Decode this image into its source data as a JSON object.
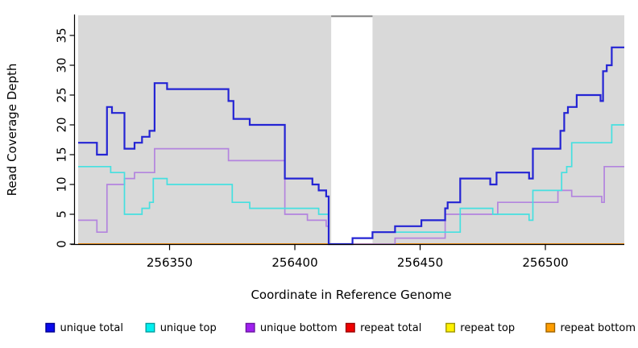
{
  "figure": {
    "x_axis_label": "Coordinate in Reference Genome",
    "y_axis_label": "Read Coverage Depth"
  },
  "chart_data": {
    "type": "line",
    "subtype": "step-coverage",
    "title": "",
    "xlabel": "Coordinate in Reference Genome",
    "ylabel": "Read Coverage Depth",
    "x_range": [
      256313.5,
      256531.5
    ],
    "y_range": [
      0,
      38.4
    ],
    "x_ticks": [
      256350,
      256400,
      256450,
      256500
    ],
    "y_ticks": [
      0,
      5,
      10,
      15,
      20,
      25,
      30,
      35
    ],
    "grid": false,
    "panel_color": "#d9d9d9",
    "axis_color": "#000000",
    "legend_position": "bottom",
    "mask_region": {
      "x_start": 256414.5,
      "x_end": 256431,
      "fill": "#ffffff",
      "top_border_color": "#8a8a8a"
    },
    "draw_order": [
      "repeat total",
      "repeat top",
      "repeat bottom",
      "unique bottom",
      "unique top",
      "unique total"
    ],
    "series": [
      {
        "name": "unique total",
        "color": "#2424d4",
        "width": 2.2,
        "steps": [
          [
            256313.5,
            17
          ],
          [
            256321,
            15
          ],
          [
            256325,
            23
          ],
          [
            256327,
            22
          ],
          [
            256332,
            16
          ],
          [
            256336,
            17
          ],
          [
            256339,
            18
          ],
          [
            256342,
            19
          ],
          [
            256344,
            27
          ],
          [
            256349,
            26
          ],
          [
            256373.5,
            24
          ],
          [
            256375.5,
            21
          ],
          [
            256382,
            20
          ],
          [
            256396,
            11
          ],
          [
            256407,
            10
          ],
          [
            256409.5,
            9
          ],
          [
            256412.5,
            8
          ],
          [
            256413.5,
            0
          ],
          [
            256423,
            1
          ],
          [
            256431,
            2
          ],
          [
            256440,
            3
          ],
          [
            256450.5,
            4
          ],
          [
            256460,
            6
          ],
          [
            256461,
            7
          ],
          [
            256466,
            11
          ],
          [
            256478,
            10
          ],
          [
            256480.5,
            12
          ],
          [
            256493.5,
            11
          ],
          [
            256495,
            16
          ],
          [
            256506,
            19
          ],
          [
            256507.5,
            22
          ],
          [
            256509,
            23
          ],
          [
            256512.5,
            25
          ],
          [
            256522,
            24
          ],
          [
            256523,
            29
          ],
          [
            256524.5,
            30
          ],
          [
            256526.5,
            33
          ]
        ]
      },
      {
        "name": "unique top",
        "color": "#45e0e0",
        "width": 1.7,
        "steps": [
          [
            256313.5,
            13
          ],
          [
            256326.5,
            12
          ],
          [
            256332,
            5
          ],
          [
            256339,
            6
          ],
          [
            256342,
            7
          ],
          [
            256343.5,
            11
          ],
          [
            256349,
            10
          ],
          [
            256375,
            7
          ],
          [
            256382,
            6
          ],
          [
            256409.5,
            5
          ],
          [
            256413.5,
            0
          ],
          [
            256423,
            1
          ],
          [
            256431,
            2
          ],
          [
            256466,
            6
          ],
          [
            256479,
            5
          ],
          [
            256493.5,
            4
          ],
          [
            256495,
            9
          ],
          [
            256506.5,
            12
          ],
          [
            256508.5,
            13
          ],
          [
            256510.5,
            17
          ],
          [
            256526.5,
            20
          ]
        ]
      },
      {
        "name": "unique bottom",
        "color": "#b384de",
        "width": 1.7,
        "steps": [
          [
            256313.5,
            4
          ],
          [
            256321,
            2
          ],
          [
            256325,
            10
          ],
          [
            256332,
            11
          ],
          [
            256336,
            12
          ],
          [
            256344,
            16
          ],
          [
            256373.5,
            14
          ],
          [
            256396,
            5
          ],
          [
            256405,
            4
          ],
          [
            256412.5,
            3
          ],
          [
            256413.5,
            0
          ],
          [
            256440,
            1
          ],
          [
            256460,
            5
          ],
          [
            256481,
            7
          ],
          [
            256505,
            9
          ],
          [
            256510.5,
            8
          ],
          [
            256522.5,
            7
          ],
          [
            256523.5,
            13
          ]
        ]
      },
      {
        "name": "repeat total",
        "color": "#d42424",
        "width": 1.5,
        "steps": [
          [
            256313.5,
            0
          ]
        ]
      },
      {
        "name": "repeat top",
        "color": "#f0f000",
        "width": 1.5,
        "steps": [
          [
            256313.5,
            0
          ]
        ]
      },
      {
        "name": "repeat bottom",
        "color": "#ff9612",
        "width": 2.0,
        "steps": [
          [
            256313.5,
            0
          ]
        ]
      }
    ]
  },
  "legend": {
    "items": [
      {
        "label": "unique total",
        "swatch_fill": "#0a0aee",
        "swatch_border": "#000090"
      },
      {
        "label": "unique top",
        "swatch_fill": "#00f0f0",
        "swatch_border": "#009f9f"
      },
      {
        "label": "unique bottom",
        "swatch_fill": "#a020f0",
        "swatch_border": "#6a14a0"
      },
      {
        "label": "repeat total",
        "swatch_fill": "#f00000",
        "swatch_border": "#9a0000"
      },
      {
        "label": "repeat top",
        "swatch_fill": "#fff200",
        "swatch_border": "#9f9700"
      },
      {
        "label": "repeat bottom",
        "swatch_fill": "#ff9d00",
        "swatch_border": "#a06400"
      }
    ]
  }
}
